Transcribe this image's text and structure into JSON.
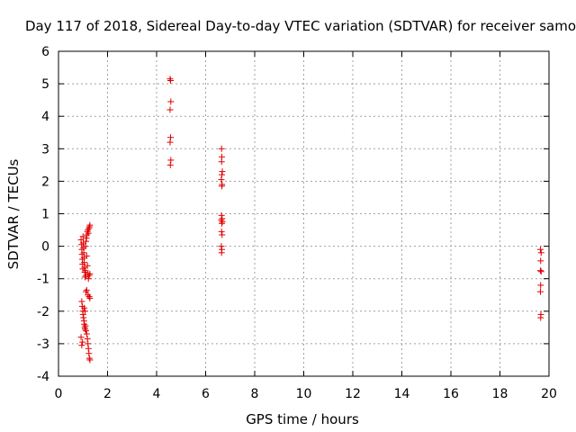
{
  "chart_data": {
    "type": "scatter",
    "title": "Day 117 of 2018, Sidereal Day-to-day VTEC variation (SDTVAR) for receiver samo",
    "xlabel": "GPS time / hours",
    "ylabel": "SDTVAR / TECUs",
    "xlim": [
      0,
      20
    ],
    "ylim": [
      -4,
      6
    ],
    "x_ticks": [
      0,
      2,
      4,
      6,
      8,
      10,
      12,
      14,
      16,
      18,
      20
    ],
    "y_ticks": [
      -4,
      -3,
      -2,
      -1,
      0,
      1,
      2,
      3,
      4,
      5,
      6
    ],
    "grid": true,
    "marker": "+",
    "marker_color": "#e00000",
    "series": [
      {
        "name": "SDTVAR",
        "points": [
          [
            0.92,
            0.2
          ],
          [
            0.94,
            0.05
          ],
          [
            0.95,
            -0.1
          ],
          [
            0.96,
            -0.25
          ],
          [
            0.97,
            -0.4
          ],
          [
            0.98,
            -0.55
          ],
          [
            0.99,
            -0.7
          ],
          [
            1.0,
            0.3
          ],
          [
            1.01,
            0.1
          ],
          [
            1.02,
            -0.05
          ],
          [
            1.03,
            -0.2
          ],
          [
            1.04,
            -0.35
          ],
          [
            1.05,
            -0.5
          ],
          [
            1.06,
            -0.65
          ],
          [
            1.07,
            -0.8
          ],
          [
            1.08,
            -0.95
          ],
          [
            1.1,
            0.0
          ],
          [
            1.12,
            0.15
          ],
          [
            1.14,
            0.25
          ],
          [
            1.16,
            0.35
          ],
          [
            1.18,
            0.45
          ],
          [
            1.2,
            0.5
          ],
          [
            1.22,
            0.4
          ],
          [
            1.24,
            0.55
          ],
          [
            1.26,
            0.6
          ],
          [
            1.28,
            0.65
          ],
          [
            1.15,
            -0.3
          ],
          [
            1.18,
            -0.6
          ],
          [
            1.2,
            -0.85
          ],
          [
            1.22,
            -1.0
          ],
          [
            1.25,
            -0.9
          ],
          [
            1.28,
            -0.85
          ],
          [
            1.1,
            -0.75
          ],
          [
            1.12,
            -0.9
          ],
          [
            0.95,
            -1.7
          ],
          [
            0.97,
            -1.85
          ],
          [
            0.99,
            -2.0
          ],
          [
            1.0,
            -2.1
          ],
          [
            1.02,
            -2.2
          ],
          [
            1.04,
            -2.3
          ],
          [
            1.05,
            -2.4
          ],
          [
            1.07,
            -2.5
          ],
          [
            1.08,
            -2.55
          ],
          [
            1.1,
            -2.45
          ],
          [
            1.05,
            -1.9
          ],
          [
            1.08,
            -2.0
          ],
          [
            1.12,
            -1.4
          ],
          [
            1.15,
            -1.35
          ],
          [
            1.2,
            -1.5
          ],
          [
            1.25,
            -1.55
          ],
          [
            1.28,
            -1.6
          ],
          [
            0.92,
            -2.8
          ],
          [
            0.95,
            -3.05
          ],
          [
            0.98,
            -2.95
          ],
          [
            1.12,
            -2.6
          ],
          [
            1.15,
            -2.7
          ],
          [
            1.18,
            -2.85
          ],
          [
            1.2,
            -3.0
          ],
          [
            1.22,
            -3.15
          ],
          [
            1.24,
            -3.3
          ],
          [
            1.26,
            -3.45
          ],
          [
            1.28,
            -3.5
          ],
          [
            4.55,
            5.15
          ],
          [
            4.57,
            5.1
          ],
          [
            4.58,
            4.45
          ],
          [
            4.55,
            4.2
          ],
          [
            4.57,
            3.35
          ],
          [
            4.55,
            3.2
          ],
          [
            4.58,
            2.65
          ],
          [
            4.56,
            2.5
          ],
          [
            6.65,
            3.0
          ],
          [
            6.66,
            2.75
          ],
          [
            6.65,
            2.6
          ],
          [
            6.68,
            2.3
          ],
          [
            6.66,
            2.2
          ],
          [
            6.64,
            2.05
          ],
          [
            6.67,
            1.9
          ],
          [
            6.66,
            1.85
          ],
          [
            6.65,
            0.95
          ],
          [
            6.67,
            0.85
          ],
          [
            6.64,
            0.8
          ],
          [
            6.68,
            0.75
          ],
          [
            6.66,
            0.7
          ],
          [
            6.65,
            0.45
          ],
          [
            6.67,
            0.35
          ],
          [
            6.64,
            0.0
          ],
          [
            6.66,
            -0.1
          ],
          [
            6.65,
            -0.2
          ],
          [
            19.65,
            -0.1
          ],
          [
            19.68,
            -0.2
          ],
          [
            19.66,
            -0.45
          ],
          [
            19.65,
            -0.75
          ],
          [
            19.68,
            -0.78
          ],
          [
            19.66,
            -1.2
          ],
          [
            19.65,
            -1.4
          ],
          [
            19.67,
            -2.1
          ],
          [
            19.66,
            -2.2
          ]
        ]
      }
    ]
  }
}
